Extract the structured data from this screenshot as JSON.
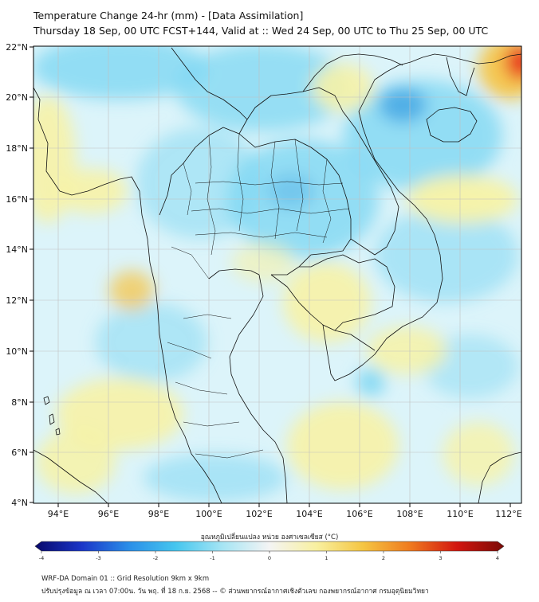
{
  "title": {
    "line1": "Temperature Change 24-hr (mm) - [Data Assimilation]",
    "line2": "Thursday 18 Sep, 00 UTC FCST+144, Valid at :: Wed 24 Sep, 00 UTC to Thu 25 Sep, 00 UTC"
  },
  "map": {
    "lon_ticks": [
      "94°E",
      "96°E",
      "98°E",
      "100°E",
      "102°E",
      "104°E",
      "106°E",
      "108°E",
      "110°E",
      "112°E"
    ],
    "lat_ticks": [
      "22°N",
      "20°N",
      "18°N",
      "16°N",
      "14°N",
      "12°N",
      "10°N",
      "8°N",
      "6°N",
      "4°N"
    ],
    "colors": {
      "sea_base": "#dcf4fa",
      "cyan": "#7fd7f2",
      "blue": "#3b9fe0",
      "yellow": "#f7f2a6",
      "orange": "#f5c54a",
      "red": "#e8231b",
      "border": "#111111",
      "grid": "#bfbfbf"
    }
  },
  "colorbar": {
    "title": "อุณหภูมิเปลี่ยนแปลง หน่วย องศาเซลเซียส (°C)",
    "ticks": [
      "-4",
      "-3",
      "-2",
      "-1",
      "0",
      "1",
      "2",
      "3",
      "4"
    ],
    "range": [
      -4,
      4
    ],
    "colors": [
      "#08086b",
      "#1a36c8",
      "#2a8ee8",
      "#46c6ee",
      "#a6e5f4",
      "#f4f4f4",
      "#f8f0a0",
      "#f5c542",
      "#ef7a1f",
      "#d2160f",
      "#7a0a06"
    ]
  },
  "footer": {
    "line1": "WRF-DA Domain 01 :: Grid Resolution 9km x 9km",
    "line2": "ปรับปรุงข้อมูล ณ เวลา 07:00น. วัน พฤ. ที่ 18 ก.ย. 2568 -- © ส่วนพยากรณ์อากาศเชิงตัวเลข กองพยากรณ์อากาศ กรมอุตุนิยมวิทยา"
  }
}
